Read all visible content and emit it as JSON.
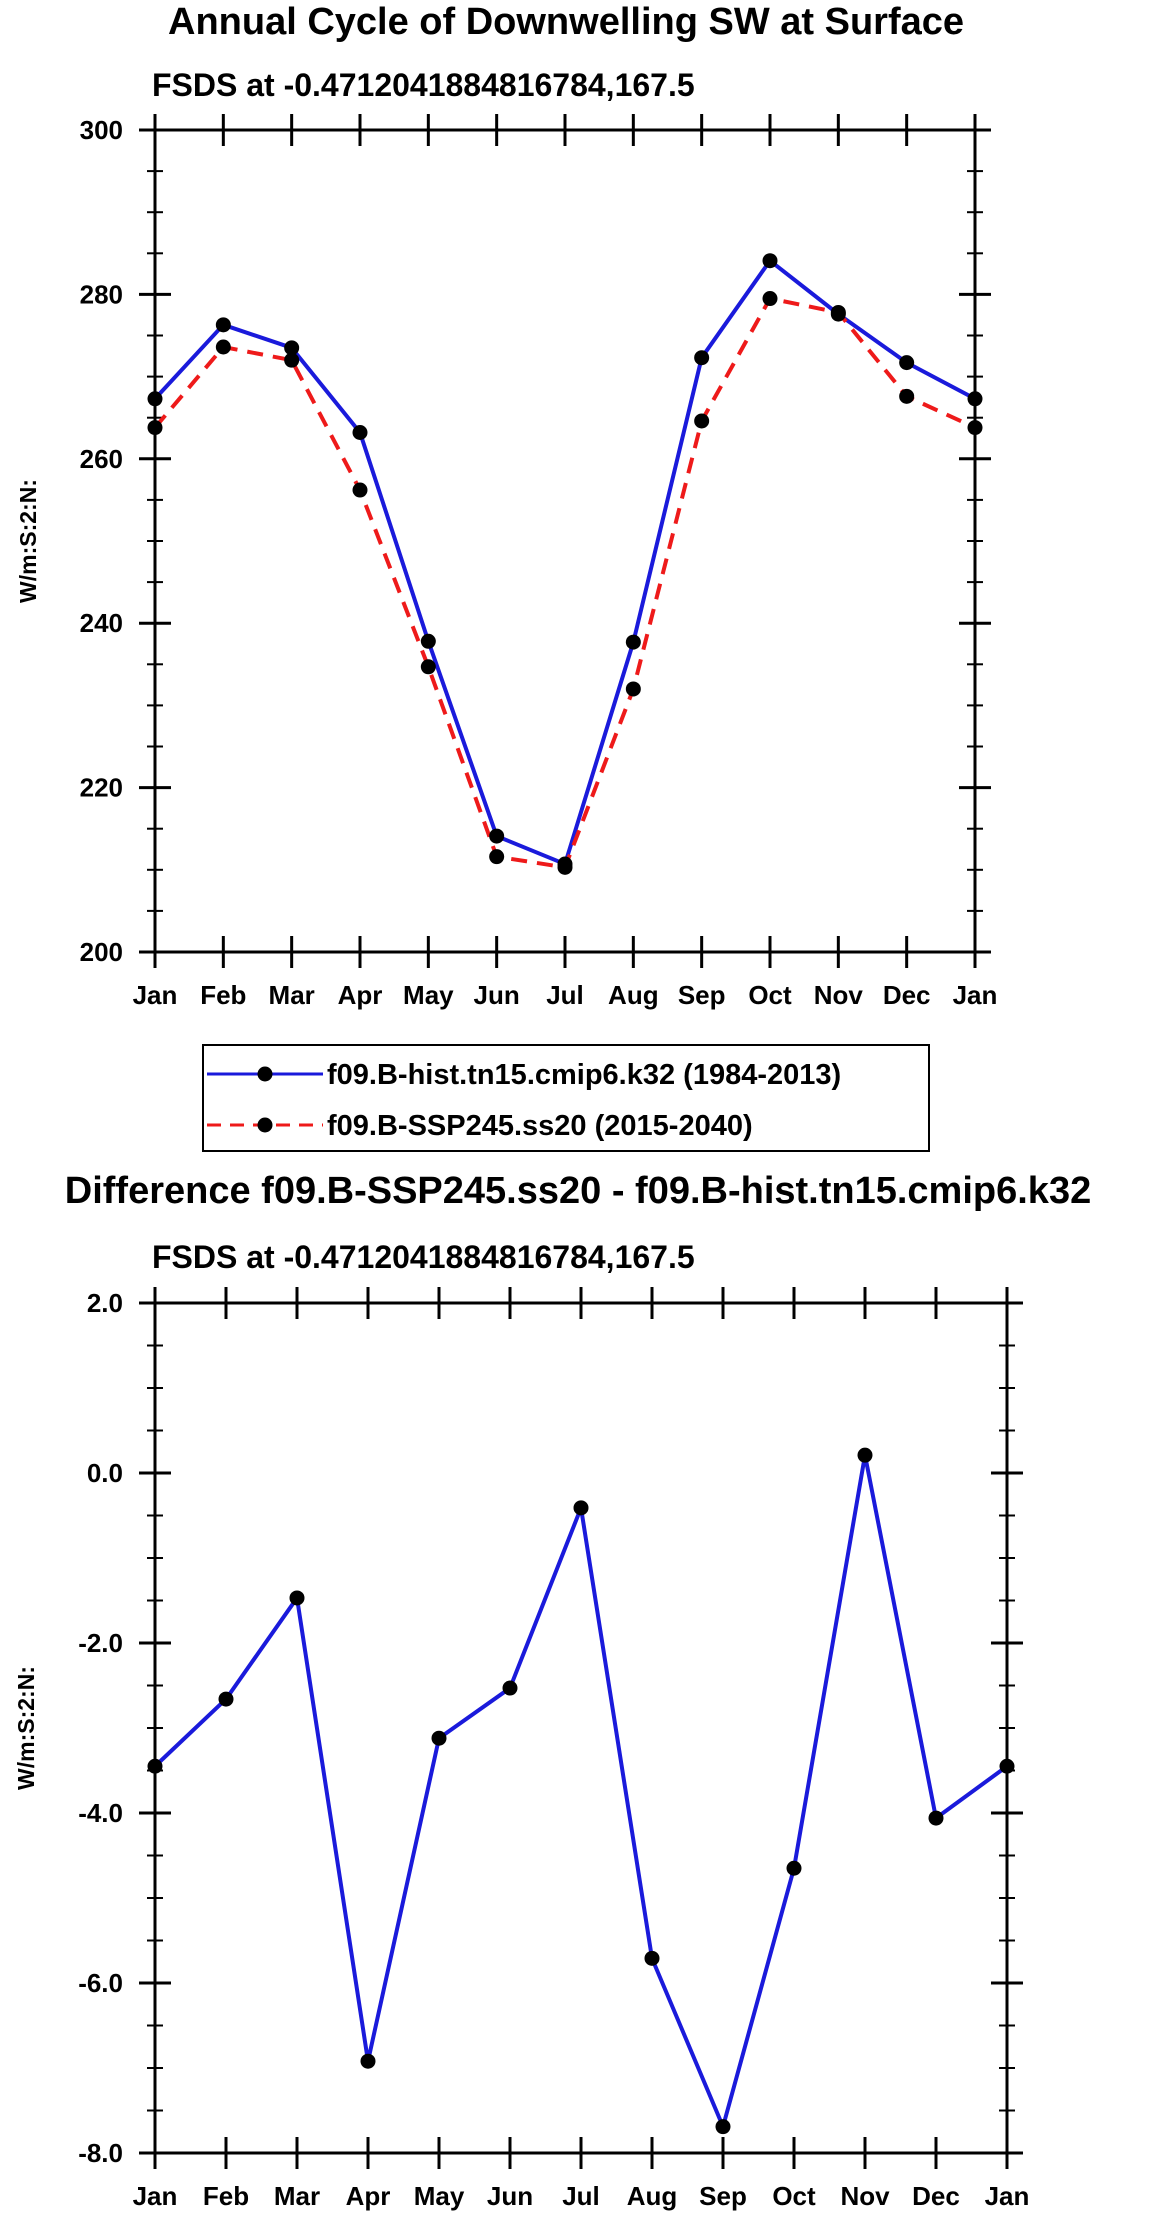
{
  "colors": {
    "hist": "#1a1adb",
    "ssp": "#ee1a1a",
    "marker": "#000000",
    "frame": "#000000"
  },
  "legend": {
    "items": [
      {
        "label": "f09.B-hist.tn15.cmip6.k32 (1984-2013)",
        "color": "#1a1adb",
        "style": "solid",
        "marker": "dot"
      },
      {
        "label": "f09.B-SSP245.ss20 (2015-2040)",
        "color": "#ee1a1a",
        "style": "dashed",
        "marker": "dot"
      }
    ]
  },
  "chart_data": [
    {
      "type": "line",
      "title": "Annual Cycle of Downwelling SW at Surface",
      "subtitle": "FSDS at -0.4712041884816784,167.5",
      "xlabel": "",
      "ylabel": "W/m:S:2:N:",
      "categories": [
        "Jan",
        "Feb",
        "Mar",
        "Apr",
        "May",
        "Jun",
        "Jul",
        "Aug",
        "Sep",
        "Oct",
        "Nov",
        "Dec",
        "Jan"
      ],
      "ylim": [
        200,
        300
      ],
      "yticks": [
        "200",
        "220",
        "240",
        "260",
        "280",
        "300"
      ],
      "ytick_values": [
        200,
        220,
        240,
        260,
        280,
        300
      ],
      "series": [
        {
          "name": "f09.B-hist.tn15.cmip6.k32 (1984-2013)",
          "color": "#1a1adb",
          "dashed": false,
          "values": [
            267.3,
            276.3,
            273.5,
            263.2,
            237.8,
            214.1,
            210.7,
            237.7,
            272.3,
            284.1,
            277.6,
            271.7,
            267.3
          ]
        },
        {
          "name": "f09.B-SSP245.ss20 (2015-2040)",
          "color": "#ee1a1a",
          "dashed": true,
          "values": [
            263.8,
            273.6,
            272.0,
            256.2,
            234.7,
            211.6,
            210.3,
            232.0,
            264.6,
            279.5,
            277.8,
            267.6,
            263.8
          ]
        }
      ]
    },
    {
      "type": "line",
      "title": "Difference f09.B-SSP245.ss20 - f09.B-hist.tn15.cmip6.k32",
      "subtitle": "FSDS at -0.4712041884816784,167.5",
      "xlabel": "",
      "ylabel": "W/m:S:2:N:",
      "categories": [
        "Jan",
        "Feb",
        "Mar",
        "Apr",
        "May",
        "Jun",
        "Jul",
        "Aug",
        "Sep",
        "Oct",
        "Nov",
        "Dec",
        "Jan"
      ],
      "ylim": [
        -8,
        2
      ],
      "yticks": [
        "-8.0",
        "-6.0",
        "-4.0",
        "-2.0",
        "0.0",
        "2.0"
      ],
      "ytick_values": [
        -8,
        -6,
        -4,
        -2,
        0,
        2
      ],
      "series": [
        {
          "name": "Difference",
          "color": "#1a1adb",
          "dashed": false,
          "values": [
            -3.45,
            -2.66,
            -1.47,
            -6.92,
            -3.12,
            -2.53,
            -0.41,
            -5.71,
            -7.69,
            -4.65,
            0.21,
            -4.06,
            -3.45
          ]
        }
      ]
    }
  ]
}
